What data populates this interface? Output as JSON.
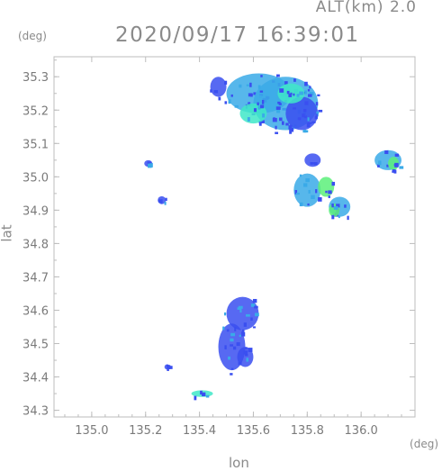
{
  "header": {
    "altitude": "ALT(km) 2.0",
    "timestamp": "2020/09/17 16:39:01"
  },
  "axes": {
    "x_unit": "(deg)",
    "y_unit": "(deg)",
    "xlabel": "lon",
    "ylabel": "lat",
    "x_ticks": [
      "135.0",
      "135.2",
      "135.4",
      "135.6",
      "135.8",
      "136.0"
    ],
    "y_ticks": [
      "35.3",
      "35.2",
      "35.1",
      "35.0",
      "34.9",
      "34.8",
      "34.7",
      "34.6",
      "34.5",
      "34.4",
      "34.3"
    ],
    "xlim": [
      134.86,
      136.2
    ],
    "ylim": [
      34.28,
      35.36
    ]
  },
  "colors": {
    "frame": "#bdbdbd",
    "echo_low": "#3a4ff0",
    "echo_mid": "#3aaae8",
    "echo_high": "#40e8c8",
    "echo_peak": "#5cf07a"
  },
  "echo_cells": [
    {
      "lon": 135.62,
      "lat": 35.25,
      "r_lon": 0.12,
      "r_lat": 0.06,
      "level": "mid"
    },
    {
      "lon": 135.72,
      "lat": 35.22,
      "r_lon": 0.12,
      "r_lat": 0.08,
      "level": "mid"
    },
    {
      "lon": 135.47,
      "lat": 35.27,
      "r_lon": 0.03,
      "r_lat": 0.03,
      "level": "low"
    },
    {
      "lon": 135.78,
      "lat": 35.19,
      "r_lon": 0.06,
      "r_lat": 0.05,
      "level": "low"
    },
    {
      "lon": 135.74,
      "lat": 35.25,
      "r_lon": 0.05,
      "r_lat": 0.03,
      "level": "high"
    },
    {
      "lon": 135.6,
      "lat": 35.19,
      "r_lon": 0.05,
      "r_lat": 0.03,
      "level": "high"
    },
    {
      "lon": 135.82,
      "lat": 35.05,
      "r_lon": 0.03,
      "r_lat": 0.02,
      "level": "low"
    },
    {
      "lon": 135.8,
      "lat": 34.96,
      "r_lon": 0.05,
      "r_lat": 0.05,
      "level": "mid"
    },
    {
      "lon": 135.87,
      "lat": 34.97,
      "r_lon": 0.03,
      "r_lat": 0.03,
      "level": "peak"
    },
    {
      "lon": 135.92,
      "lat": 34.91,
      "r_lon": 0.04,
      "r_lat": 0.03,
      "level": "mid"
    },
    {
      "lon": 135.9,
      "lat": 34.9,
      "r_lon": 0.02,
      "r_lat": 0.02,
      "level": "peak"
    },
    {
      "lon": 136.1,
      "lat": 35.05,
      "r_lon": 0.05,
      "r_lat": 0.03,
      "level": "mid"
    },
    {
      "lon": 136.12,
      "lat": 35.04,
      "r_lon": 0.02,
      "r_lat": 0.02,
      "level": "peak"
    },
    {
      "lon": 135.52,
      "lat": 34.49,
      "r_lon": 0.05,
      "r_lat": 0.07,
      "level": "low"
    },
    {
      "lon": 135.56,
      "lat": 34.59,
      "r_lon": 0.06,
      "r_lat": 0.05,
      "level": "low"
    },
    {
      "lon": 135.57,
      "lat": 34.46,
      "r_lon": 0.03,
      "r_lat": 0.03,
      "level": "low"
    },
    {
      "lon": 135.26,
      "lat": 34.93,
      "r_lon": 0.015,
      "r_lat": 0.012,
      "level": "low"
    },
    {
      "lon": 135.21,
      "lat": 35.04,
      "r_lon": 0.015,
      "r_lat": 0.01,
      "level": "low"
    },
    {
      "lon": 135.41,
      "lat": 34.35,
      "r_lon": 0.04,
      "r_lat": 0.01,
      "level": "high"
    },
    {
      "lon": 135.28,
      "lat": 34.43,
      "r_lon": 0.01,
      "r_lat": 0.008,
      "level": "low"
    }
  ]
}
